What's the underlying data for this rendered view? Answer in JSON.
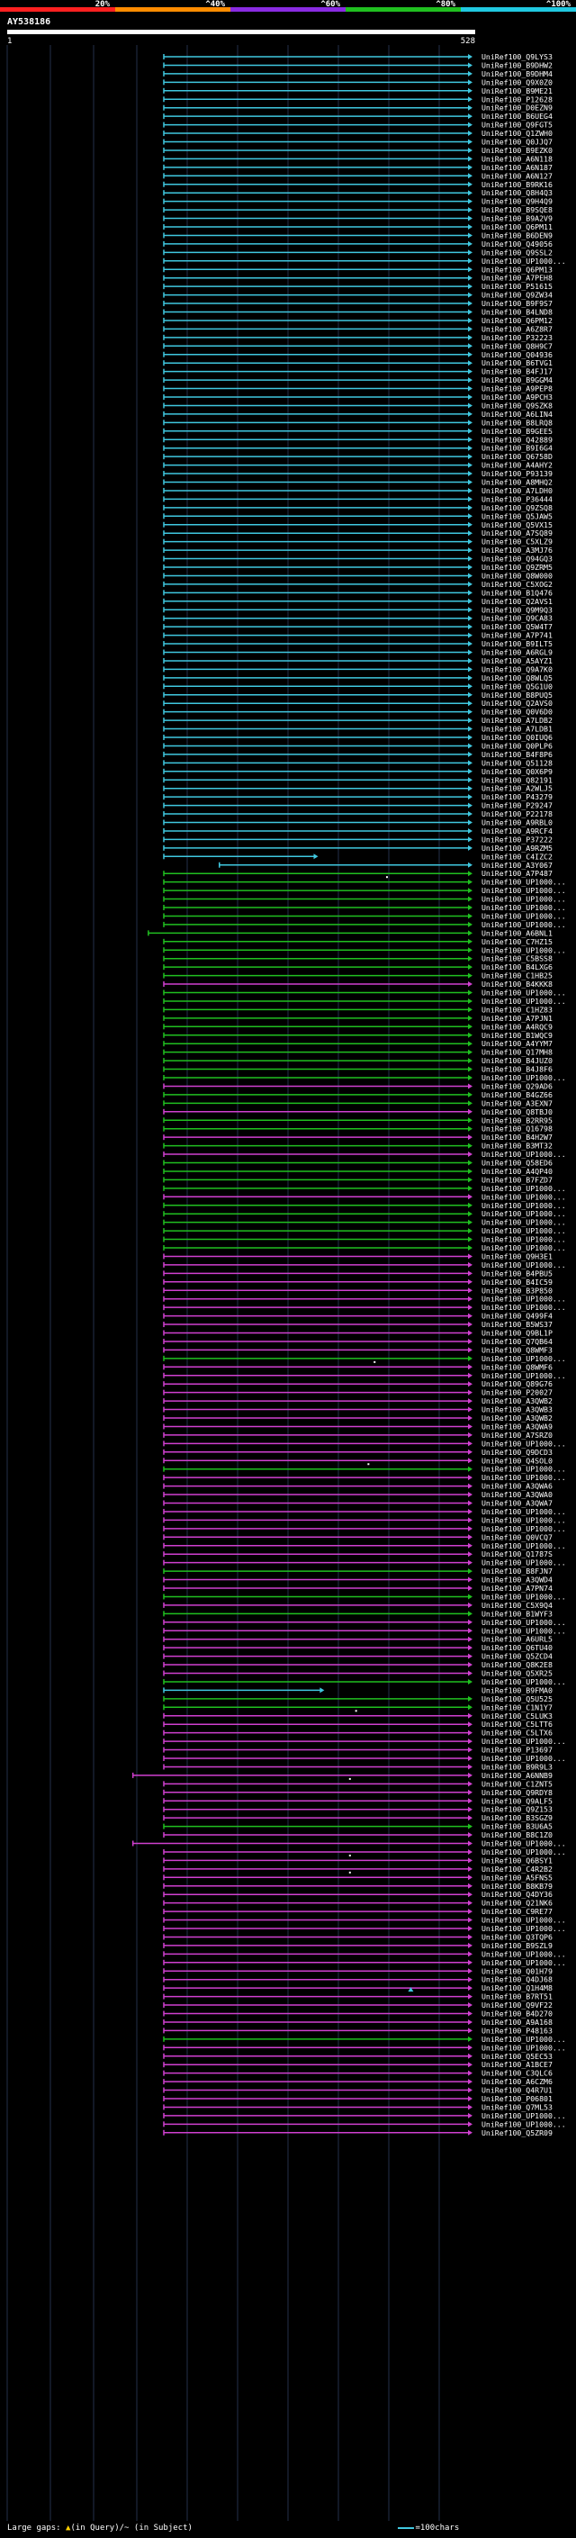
{
  "scale": {
    "ticks": [
      "20%",
      "^40%",
      "^60%",
      "^80%",
      "^100%"
    ],
    "colors": [
      "#ff2020",
      "#ff8c00",
      "#8a2be2",
      "#20c020",
      "#20c8e0"
    ]
  },
  "query": {
    "id": "AY538186",
    "start": "1",
    "end": "528"
  },
  "legend": {
    "prefix": "Large gaps:",
    "gap_query": "(in Query)",
    "gap_subject": "/~ (in Subject)",
    "scale_text": "=100chars"
  },
  "hits": [
    {
      "label": "UniRef100_Q9LYS3",
      "color": "cyan"
    },
    {
      "label": "UniRef100_B9DHW2",
      "color": "cyan"
    },
    {
      "label": "UniRef100_B9DHM4",
      "color": "cyan"
    },
    {
      "label": "UniRef100_Q9X0Z0",
      "color": "cyan"
    },
    {
      "label": "UniRef100_B9ME21",
      "color": "cyan"
    },
    {
      "label": "UniRef100_P12628",
      "color": "cyan"
    },
    {
      "label": "UniRef100_D0EZN9",
      "color": "cyan"
    },
    {
      "label": "UniRef100_B6UEG4",
      "color": "cyan"
    },
    {
      "label": "UniRef100_Q9FGT5",
      "color": "cyan"
    },
    {
      "label": "UniRef100_Q1ZWH0",
      "color": "cyan"
    },
    {
      "label": "UniRef100_Q0JJQ7",
      "color": "cyan"
    },
    {
      "label": "UniRef100_B9EZK0",
      "color": "cyan"
    },
    {
      "label": "UniRef100_A6N118",
      "color": "cyan"
    },
    {
      "label": "UniRef100_A6N187",
      "color": "cyan"
    },
    {
      "label": "UniRef100_A6N127",
      "color": "cyan"
    },
    {
      "label": "UniRef100_B9RK16",
      "color": "cyan"
    },
    {
      "label": "UniRef100_Q8H4Q3",
      "color": "cyan"
    },
    {
      "label": "UniRef100_Q9H4Q9",
      "color": "cyan"
    },
    {
      "label": "UniRef100_B9SQE8",
      "color": "cyan"
    },
    {
      "label": "UniRef100_B9A2V9",
      "color": "cyan"
    },
    {
      "label": "UniRef100_Q6PM11",
      "color": "cyan"
    },
    {
      "label": "UniRef100_B6DEN9",
      "color": "cyan"
    },
    {
      "label": "UniRef100_Q49056",
      "color": "cyan"
    },
    {
      "label": "UniRef100_Q9SSL2",
      "color": "cyan"
    },
    {
      "label": "UniRef100_UP1000...",
      "color": "cyan"
    },
    {
      "label": "UniRef100_Q6PM13",
      "color": "cyan"
    },
    {
      "label": "UniRef100_A7PEH8",
      "color": "cyan"
    },
    {
      "label": "UniRef100_P51615",
      "color": "cyan"
    },
    {
      "label": "UniRef100_Q9ZW34",
      "color": "cyan"
    },
    {
      "label": "UniRef100_B9F9S7",
      "color": "cyan"
    },
    {
      "label": "UniRef100_B4LND8",
      "color": "cyan"
    },
    {
      "label": "UniRef100_Q6PM12",
      "color": "cyan"
    },
    {
      "label": "UniRef100_A6Z8R7",
      "color": "cyan"
    },
    {
      "label": "UniRef100_P32223",
      "color": "cyan"
    },
    {
      "label": "UniRef100_Q8H9C7",
      "color": "cyan"
    },
    {
      "label": "UniRef100_Q04936",
      "color": "cyan"
    },
    {
      "label": "UniRef100_B6TVG1",
      "color": "cyan"
    },
    {
      "label": "UniRef100_B4FJ17",
      "color": "cyan"
    },
    {
      "label": "UniRef100_B9GGM4",
      "color": "cyan"
    },
    {
      "label": "UniRef100_A9PEP8",
      "color": "cyan"
    },
    {
      "label": "UniRef100_A9PCH3",
      "color": "cyan"
    },
    {
      "label": "UniRef100_Q9SZK8",
      "color": "cyan"
    },
    {
      "label": "UniRef100_A6LIN4",
      "color": "cyan"
    },
    {
      "label": "UniRef100_B8LRQ8",
      "color": "cyan"
    },
    {
      "label": "UniRef100_B9GEE5",
      "color": "cyan"
    },
    {
      "label": "UniRef100_Q42889",
      "color": "cyan"
    },
    {
      "label": "UniRef100_B9I6G4",
      "color": "cyan"
    },
    {
      "label": "UniRef100_Q6758D",
      "color": "cyan"
    },
    {
      "label": "UniRef100_A4AHY2",
      "color": "cyan"
    },
    {
      "label": "UniRef100_P93139",
      "color": "cyan"
    },
    {
      "label": "UniRef100_A8MHQ2",
      "color": "cyan"
    },
    {
      "label": "UniRef100_A7LDH0",
      "color": "cyan"
    },
    {
      "label": "UniRef100_P36444",
      "color": "cyan"
    },
    {
      "label": "UniRef100_Q9ZSQ8",
      "color": "cyan"
    },
    {
      "label": "UniRef100_Q5JAW5",
      "color": "cyan"
    },
    {
      "label": "UniRef100_Q5VX15",
      "color": "cyan"
    },
    {
      "label": "UniRef100_A7SQ89",
      "color": "cyan"
    },
    {
      "label": "UniRef100_C5XLZ9",
      "color": "cyan"
    },
    {
      "label": "UniRef100_A3MJ76",
      "color": "cyan"
    },
    {
      "label": "UniRef100_Q94GQ3",
      "color": "cyan"
    },
    {
      "label": "UniRef100_Q9ZRM5",
      "color": "cyan"
    },
    {
      "label": "UniRef100_Q8W000",
      "color": "cyan"
    },
    {
      "label": "UniRef100_C5XOG2",
      "color": "cyan"
    },
    {
      "label": "UniRef100_B1Q476",
      "color": "cyan"
    },
    {
      "label": "UniRef100_Q2AVS1",
      "color": "cyan"
    },
    {
      "label": "UniRef100_Q9M9Q3",
      "color": "cyan"
    },
    {
      "label": "UniRef100_Q9CA83",
      "color": "cyan"
    },
    {
      "label": "UniRef100_Q5W4T7",
      "color": "cyan"
    },
    {
      "label": "UniRef100_A7P741",
      "color": "cyan"
    },
    {
      "label": "UniRef100_B9ILT5",
      "color": "cyan"
    },
    {
      "label": "UniRef100_A6RGL9",
      "color": "cyan"
    },
    {
      "label": "UniRef100_A5AYZ1",
      "color": "cyan"
    },
    {
      "label": "UniRef100_Q9A7K0",
      "color": "cyan"
    },
    {
      "label": "UniRef100_Q8WLQ5",
      "color": "cyan"
    },
    {
      "label": "UniRef100_Q5G1U0",
      "color": "cyan"
    },
    {
      "label": "UniRef100_B8PUQ5",
      "color": "cyan"
    },
    {
      "label": "UniRef100_Q2AVS0",
      "color": "cyan"
    },
    {
      "label": "UniRef100_Q0V6D0",
      "color": "cyan"
    },
    {
      "label": "UniRef100_A7LDB2",
      "color": "cyan"
    },
    {
      "label": "UniRef100_A7LDB1",
      "color": "cyan"
    },
    {
      "label": "UniRef100_Q0IUQ6",
      "color": "cyan"
    },
    {
      "label": "UniRef100_Q0PLP6",
      "color": "cyan"
    },
    {
      "label": "UniRef100_B4F8P6",
      "color": "cyan"
    },
    {
      "label": "UniRef100_Q51128",
      "color": "cyan"
    },
    {
      "label": "UniRef100_Q0X6P9",
      "color": "cyan"
    },
    {
      "label": "UniRef100_Q82191",
      "color": "cyan"
    },
    {
      "label": "UniRef100_A2WLJ5",
      "color": "cyan"
    },
    {
      "label": "UniRef100_P43279",
      "color": "cyan"
    },
    {
      "label": "UniRef100_P29247",
      "color": "cyan"
    },
    {
      "label": "UniRef100_P22178",
      "color": "cyan"
    },
    {
      "label": "UniRef100_A9RBL0",
      "color": "cyan"
    },
    {
      "label": "UniRef100_A9RCF4",
      "color": "cyan"
    },
    {
      "label": "UniRef100_P37222",
      "color": "cyan"
    },
    {
      "label": "UniRef100_A9RZM5",
      "color": "cyan"
    },
    {
      "label": "UniRef100_C4IZC2",
      "color": "cyan",
      "start": 0.0,
      "end": 0.5,
      "gaps": []
    },
    {
      "label": "UniRef100_A3Y067",
      "color": "cyan",
      "start": 0.18,
      "end": 1.0
    },
    {
      "label": "UniRef100_A7P487",
      "color": "green",
      "dot": 0.72
    },
    {
      "label": "UniRef100_UP1000...",
      "color": "green"
    },
    {
      "label": "UniRef100_UP1000...",
      "color": "green"
    },
    {
      "label": "UniRef100_UP1000...",
      "color": "green"
    },
    {
      "label": "UniRef100_UP1000...",
      "color": "green"
    },
    {
      "label": "UniRef100_UP1000...",
      "color": "green"
    },
    {
      "label": "UniRef100_UP1000...",
      "color": "green"
    },
    {
      "label": "UniRef100_A6BNL1",
      "color": "green",
      "start": -0.05
    },
    {
      "label": "UniRef100_C7HZ15",
      "color": "green"
    },
    {
      "label": "UniRef100_UP1000...",
      "color": "green"
    },
    {
      "label": "UniRef100_C5BSS8",
      "color": "green"
    },
    {
      "label": "UniRef100_B4LXG6",
      "color": "green"
    },
    {
      "label": "UniRef100_C1HB25",
      "color": "green"
    },
    {
      "label": "UniRef100_B4KKK8",
      "color": "magenta"
    },
    {
      "label": "UniRef100_UP1000...",
      "color": "green"
    },
    {
      "label": "UniRef100_UP1000...",
      "color": "green"
    },
    {
      "label": "UniRef100_C1HZ83",
      "color": "green"
    },
    {
      "label": "UniRef100_A7PJN1",
      "color": "green"
    },
    {
      "label": "UniRef100_A4RQC9",
      "color": "green"
    },
    {
      "label": "UniRef100_B1WQC9",
      "color": "green"
    },
    {
      "label": "UniRef100_A4YYM7",
      "color": "green"
    },
    {
      "label": "UniRef100_Q17MH8",
      "color": "green"
    },
    {
      "label": "UniRef100_B4JUZ0",
      "color": "green"
    },
    {
      "label": "UniRef100_B4J8F6",
      "color": "green"
    },
    {
      "label": "UniRef100_UP1000...",
      "color": "green"
    },
    {
      "label": "UniRef100_Q29AD6",
      "color": "magenta"
    },
    {
      "label": "UniRef100_B4GZ66",
      "color": "green"
    },
    {
      "label": "UniRef100_A3EXN7",
      "color": "green"
    },
    {
      "label": "UniRef100_Q8TBJ0",
      "color": "magenta"
    },
    {
      "label": "UniRef100_B2RR95",
      "color": "green"
    },
    {
      "label": "UniRef100_Q16798",
      "color": "green"
    },
    {
      "label": "UniRef100_B4H2W7",
      "color": "magenta"
    },
    {
      "label": "UniRef100_B3MT32",
      "color": "green"
    },
    {
      "label": "UniRef100_UP1000...",
      "color": "magenta"
    },
    {
      "label": "UniRef100_Q58ED6",
      "color": "green"
    },
    {
      "label": "UniRef100_A4QP40",
      "color": "green"
    },
    {
      "label": "UniRef100_B7FZD7",
      "color": "green"
    },
    {
      "label": "UniRef100_UP1000...",
      "color": "green"
    },
    {
      "label": "UniRef100_UP1000...",
      "color": "magenta"
    },
    {
      "label": "UniRef100_UP1000...",
      "color": "green"
    },
    {
      "label": "UniRef100_UP1000...",
      "color": "green"
    },
    {
      "label": "UniRef100_UP1000...",
      "color": "green"
    },
    {
      "label": "UniRef100_UP1000...",
      "color": "green"
    },
    {
      "label": "UniRef100_UP1000...",
      "color": "green"
    },
    {
      "label": "UniRef100_UP1000...",
      "color": "green"
    },
    {
      "label": "UniRef100_Q9H3E1",
      "color": "magenta"
    },
    {
      "label": "UniRef100_UP1000...",
      "color": "magenta"
    },
    {
      "label": "UniRef100_B4PBU5",
      "color": "magenta"
    },
    {
      "label": "UniRef100_B4IC59",
      "color": "magenta"
    },
    {
      "label": "UniRef100_B3P850",
      "color": "magenta"
    },
    {
      "label": "UniRef100_UP1000...",
      "color": "magenta"
    },
    {
      "label": "UniRef100_UP1000...",
      "color": "magenta"
    },
    {
      "label": "UniRef100_Q499F4",
      "color": "magenta"
    },
    {
      "label": "UniRef100_B5WS37",
      "color": "magenta"
    },
    {
      "label": "UniRef100_Q9BL1P",
      "color": "magenta"
    },
    {
      "label": "UniRef100_Q7QB64",
      "color": "magenta"
    },
    {
      "label": "UniRef100_Q8WMF3",
      "color": "magenta"
    },
    {
      "label": "UniRef100_UP1000...",
      "color": "green",
      "dot": 0.68
    },
    {
      "label": "UniRef100_Q8WMF6",
      "color": "magenta"
    },
    {
      "label": "UniRef100_UP1000...",
      "color": "magenta"
    },
    {
      "label": "UniRef100_Q89G76",
      "color": "magenta"
    },
    {
      "label": "UniRef100_P20027",
      "color": "magenta"
    },
    {
      "label": "UniRef100_A3QWB2",
      "color": "magenta"
    },
    {
      "label": "UniRef100_A3QWB3",
      "color": "magenta"
    },
    {
      "label": "UniRef100_A3QWB2",
      "color": "magenta"
    },
    {
      "label": "UniRef100_A3QWA9",
      "color": "magenta"
    },
    {
      "label": "UniRef100_A7SRZ0",
      "color": "magenta"
    },
    {
      "label": "UniRef100_UP1000...",
      "color": "magenta"
    },
    {
      "label": "UniRef100_Q9DCD3",
      "color": "magenta"
    },
    {
      "label": "UniRef100_Q4SOL0",
      "color": "magenta",
      "dot": 0.66
    },
    {
      "label": "UniRef100_UP1000...",
      "color": "green"
    },
    {
      "label": "UniRef100_UP1000...",
      "color": "magenta"
    },
    {
      "label": "UniRef100_A3QWA6",
      "color": "magenta"
    },
    {
      "label": "UniRef100_A3QWA0",
      "color": "magenta"
    },
    {
      "label": "UniRef100_A3QWA7",
      "color": "magenta"
    },
    {
      "label": "UniRef100_UP1000...",
      "color": "magenta"
    },
    {
      "label": "UniRef100_UP1000...",
      "color": "magenta"
    },
    {
      "label": "UniRef100_UP1000...",
      "color": "magenta"
    },
    {
      "label": "UniRef100_Q0VCQ7",
      "color": "magenta"
    },
    {
      "label": "UniRef100_UP1000...",
      "color": "magenta"
    },
    {
      "label": "UniRef100_Q1787S",
      "color": "magenta"
    },
    {
      "label": "UniRef100_UP1000...",
      "color": "magenta"
    },
    {
      "label": "UniRef100_B8FJN7",
      "color": "green"
    },
    {
      "label": "UniRef100_A3QWD4",
      "color": "magenta"
    },
    {
      "label": "UniRef100_A7PN74",
      "color": "magenta"
    },
    {
      "label": "UniRef100_UP1000...",
      "color": "green"
    },
    {
      "label": "UniRef100_C5X9Q4",
      "color": "magenta"
    },
    {
      "label": "UniRef100_B1WYF3",
      "color": "green"
    },
    {
      "label": "UniRef100_UP1000...",
      "color": "magenta"
    },
    {
      "label": "UniRef100_UP1000...",
      "color": "magenta"
    },
    {
      "label": "UniRef100_A6URL5",
      "color": "magenta"
    },
    {
      "label": "UniRef100_Q6TU40",
      "color": "magenta"
    },
    {
      "label": "UniRef100_Q5ZCD4",
      "color": "magenta"
    },
    {
      "label": "UniRef100_Q8K2E8",
      "color": "magenta"
    },
    {
      "label": "UniRef100_Q5XR25",
      "color": "magenta"
    },
    {
      "label": "UniRef100_UP1000...",
      "color": "green"
    },
    {
      "label": "UniRef100_B9FMA0",
      "color": "cyan",
      "start": 0.0,
      "end": 0.52
    },
    {
      "label": "UniRef100_Q5U525",
      "color": "green"
    },
    {
      "label": "UniRef100_C1N1Y7",
      "color": "green",
      "dot": 0.62
    },
    {
      "label": "UniRef100_C5LUK3",
      "color": "magenta"
    },
    {
      "label": "UniRef100_C5LTT6",
      "color": "magenta"
    },
    {
      "label": "UniRef100_C5LTX6",
      "color": "magenta"
    },
    {
      "label": "UniRef100_UP1000...",
      "color": "magenta"
    },
    {
      "label": "UniRef100_P13697",
      "color": "magenta"
    },
    {
      "label": "UniRef100_UP1000...",
      "color": "magenta"
    },
    {
      "label": "UniRef100_B9R9L3",
      "color": "magenta"
    },
    {
      "label": "UniRef100_A6NNB9",
      "color": "magenta",
      "start": -0.1,
      "dot": 0.6
    },
    {
      "label": "UniRef100_C1ZNT5",
      "color": "magenta"
    },
    {
      "label": "UniRef100_Q9RDY8",
      "color": "magenta"
    },
    {
      "label": "UniRef100_Q9ALF5",
      "color": "magenta"
    },
    {
      "label": "UniRef100_Q9Z153",
      "color": "magenta"
    },
    {
      "label": "UniRef100_B3SGZ9",
      "color": "magenta"
    },
    {
      "label": "UniRef100_B3U6A5",
      "color": "green"
    },
    {
      "label": "UniRef100_B8C1Z0",
      "color": "magenta"
    },
    {
      "label": "UniRef100_UP1000...",
      "color": "magenta",
      "start": -0.1
    },
    {
      "label": "UniRef100_UP1000...",
      "color": "magenta",
      "dot": 0.6
    },
    {
      "label": "UniRef100_Q6BSY1",
      "color": "magenta"
    },
    {
      "label": "UniRef100_C4R2B2",
      "color": "magenta",
      "dot": 0.6
    },
    {
      "label": "UniRef100_A5FNS5",
      "color": "magenta"
    },
    {
      "label": "UniRef100_B8KB79",
      "color": "magenta"
    },
    {
      "label": "UniRef100_Q4DY36",
      "color": "magenta"
    },
    {
      "label": "UniRef100_Q21NK6",
      "color": "magenta"
    },
    {
      "label": "UniRef100_C9RE77",
      "color": "magenta"
    },
    {
      "label": "UniRef100_UP1000...",
      "color": "magenta"
    },
    {
      "label": "UniRef100_UP1000...",
      "color": "magenta"
    },
    {
      "label": "UniRef100_Q3TQP6",
      "color": "magenta"
    },
    {
      "label": "UniRef100_B9SZL9",
      "color": "magenta"
    },
    {
      "label": "UniRef100_UP1000...",
      "color": "magenta"
    },
    {
      "label": "UniRef100_UP1000...",
      "color": "magenta"
    },
    {
      "label": "UniRef100_Q01H79",
      "color": "magenta"
    },
    {
      "label": "UniRef100_Q4DJ68",
      "color": "magenta"
    },
    {
      "label": "UniRef100_Q1H4M8",
      "color": "magenta",
      "gap": 0.8
    },
    {
      "label": "UniRef100_B7RT51",
      "color": "magenta"
    },
    {
      "label": "UniRef100_Q9VF22",
      "color": "magenta"
    },
    {
      "label": "UniRef100_B4D270",
      "color": "magenta"
    },
    {
      "label": "UniRef100_A9A168",
      "color": "magenta"
    },
    {
      "label": "UniRef100_P48163",
      "color": "magenta"
    },
    {
      "label": "UniRef100_UP1000...",
      "color": "green"
    },
    {
      "label": "UniRef100_UP1000...",
      "color": "magenta"
    },
    {
      "label": "UniRef100_Q5EC53",
      "color": "magenta"
    },
    {
      "label": "UniRef100_A1BCE7",
      "color": "magenta"
    },
    {
      "label": "UniRef100_C3QLC6",
      "color": "magenta"
    },
    {
      "label": "UniRef100_A6CZM6",
      "color": "magenta"
    },
    {
      "label": "UniRef100_Q4R7U1",
      "color": "magenta"
    },
    {
      "label": "UniRef100_P06801",
      "color": "magenta"
    },
    {
      "label": "UniRef100_Q7ML53",
      "color": "magenta"
    },
    {
      "label": "UniRef100_UP1000...",
      "color": "magenta"
    },
    {
      "label": "UniRef100_UP1000...",
      "color": "magenta"
    },
    {
      "label": "UniRef100_Q5ZR09",
      "color": "magenta"
    }
  ]
}
